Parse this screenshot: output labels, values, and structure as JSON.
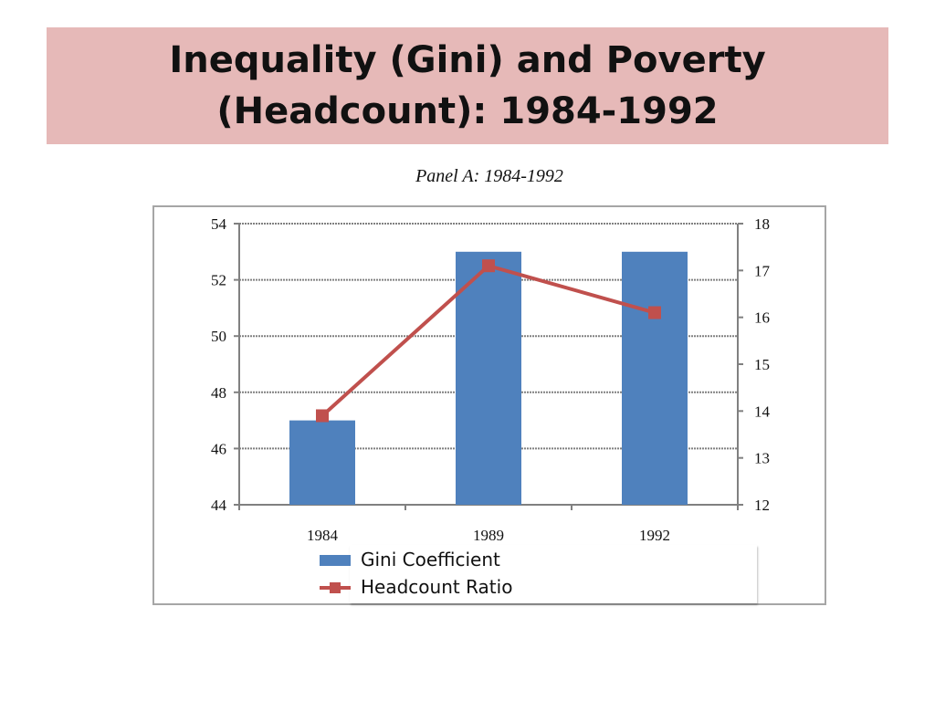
{
  "slide": {
    "title": "Inequality (Gini) and Poverty (Headcount): 1984-1992",
    "title_band_color": "#e6b9b8"
  },
  "panel": {
    "caption": "Panel A: 1984-1992"
  },
  "legend": {
    "gini_label": "Gini Coefficient",
    "headcount_label": "Headcount Ratio"
  },
  "chart_data": {
    "type": "bar",
    "title": "Panel A: 1984-1992",
    "categories": [
      "1984",
      "1989",
      "1992"
    ],
    "series": [
      {
        "name": "Gini Coefficient",
        "type": "bar",
        "axis": "left",
        "color": "#4f81bd",
        "values": [
          47,
          53,
          53
        ]
      },
      {
        "name": "Headcount Ratio",
        "type": "line",
        "axis": "right",
        "marker": "square",
        "color": "#c0504d",
        "values": [
          13.9,
          17.1,
          16.1
        ]
      }
    ],
    "y_left": {
      "min": 44,
      "max": 54,
      "ticks": [
        "44",
        "46",
        "48",
        "50",
        "52",
        "54"
      ]
    },
    "y_right": {
      "min": 12,
      "max": 18,
      "ticks": [
        "12",
        "13",
        "14",
        "15",
        "16",
        "17",
        "18"
      ]
    },
    "grid": true,
    "legend_position": "bottom"
  }
}
